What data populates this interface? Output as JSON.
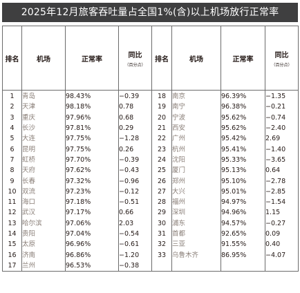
{
  "title": "2025年12月旅客吞吐量占全国1%(含)以上机场放行正常率",
  "headers": {
    "rank": "排名",
    "airport": "机场",
    "rate": "正常率",
    "yoy": "同比",
    "yoy_unit": "（百分点）"
  },
  "rows": [
    {
      "left": {
        "rank": "1",
        "airport": "青岛",
        "rate": "98.43%",
        "yoy": "−0.39"
      },
      "right": {
        "rank": "18",
        "airport": "南京",
        "rate": "96.39%",
        "yoy": "−1.35"
      }
    },
    {
      "left": {
        "rank": "2",
        "airport": "天津",
        "rate": "98.18%",
        "yoy": "0.78"
      },
      "right": {
        "rank": "19",
        "airport": "南宁",
        "rate": "96.38%",
        "yoy": "−0.21"
      }
    },
    {
      "left": {
        "rank": "3",
        "airport": "重庆",
        "rate": "97.96%",
        "yoy": "0.68"
      },
      "right": {
        "rank": "20",
        "airport": "宁波",
        "rate": "95.62%",
        "yoy": "−0.74"
      }
    },
    {
      "left": {
        "rank": "4",
        "airport": "长沙",
        "rate": "97.81%",
        "yoy": "0.29"
      },
      "right": {
        "rank": "21",
        "airport": "西安",
        "rate": "95.62%",
        "yoy": "−2.40"
      }
    },
    {
      "left": {
        "rank": "5",
        "airport": "大连",
        "rate": "97.75%",
        "yoy": "−1.28"
      },
      "right": {
        "rank": "22",
        "airport": "广州",
        "rate": "95.42%",
        "yoy": "2.69"
      }
    },
    {
      "left": {
        "rank": "6",
        "airport": "昆明",
        "rate": "97.75%",
        "yoy": "0.26"
      },
      "right": {
        "rank": "23",
        "airport": "杭州",
        "rate": "95.41%",
        "yoy": "−1.40"
      }
    },
    {
      "left": {
        "rank": "7",
        "airport": "虹桥",
        "rate": "97.70%",
        "yoy": "−0.39"
      },
      "right": {
        "rank": "24",
        "airport": "沈阳",
        "rate": "95.33%",
        "yoy": "−3.65"
      }
    },
    {
      "left": {
        "rank": "8",
        "airport": "天府",
        "rate": "97.62%",
        "yoy": "−0.43"
      },
      "right": {
        "rank": "25",
        "airport": "厦门",
        "rate": "95.13%",
        "yoy": "0.64"
      }
    },
    {
      "left": {
        "rank": "9",
        "airport": "长春",
        "rate": "97.32%",
        "yoy": "−0.96"
      },
      "right": {
        "rank": "26",
        "airport": "郑州",
        "rate": "95.10%",
        "yoy": "−2.78"
      }
    },
    {
      "left": {
        "rank": "10",
        "airport": "双流",
        "rate": "97.23%",
        "yoy": "−0.12"
      },
      "right": {
        "rank": "27",
        "airport": "大兴",
        "rate": "95.01%",
        "yoy": "−2.85"
      }
    },
    {
      "left": {
        "rank": "11",
        "airport": "海口",
        "rate": "97.18%",
        "yoy": "−0.51"
      },
      "right": {
        "rank": "28",
        "airport": "福州",
        "rate": "94.97%",
        "yoy": "−1.54"
      }
    },
    {
      "left": {
        "rank": "12",
        "airport": "武汉",
        "rate": "97.17%",
        "yoy": "0.66"
      },
      "right": {
        "rank": "29",
        "airport": "深圳",
        "rate": "94.96%",
        "yoy": "1.15"
      }
    },
    {
      "left": {
        "rank": "13",
        "airport": "哈尔滨",
        "rate": "97.06%",
        "yoy": "2.03"
      },
      "right": {
        "rank": "30",
        "airport": "浦东",
        "rate": "94.57%",
        "yoy": "−0.27"
      }
    },
    {
      "left": {
        "rank": "14",
        "airport": "贵阳",
        "rate": "97.04%",
        "yoy": "−0.54"
      },
      "right": {
        "rank": "31",
        "airport": "首都",
        "rate": "92.65%",
        "yoy": "0.09"
      }
    },
    {
      "left": {
        "rank": "15",
        "airport": "太原",
        "rate": "96.96%",
        "yoy": "−0.61"
      },
      "right": {
        "rank": "32",
        "airport": "三亚",
        "rate": "91.55%",
        "yoy": "0.40"
      }
    },
    {
      "left": {
        "rank": "16",
        "airport": "济南",
        "rate": "96.86%",
        "yoy": "−1.20"
      },
      "right": {
        "rank": "33",
        "airport": "乌鲁木齐",
        "rate": "86.95%",
        "yoy": "−4.07"
      }
    },
    {
      "left": {
        "rank": "17",
        "airport": "兰州",
        "rate": "96.53%",
        "yoy": "−0.38"
      },
      "right": {
        "rank": "",
        "airport": "",
        "rate": "",
        "yoy": ""
      }
    }
  ]
}
